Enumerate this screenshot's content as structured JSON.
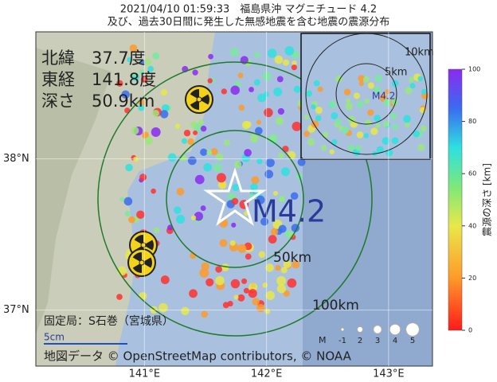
{
  "header": {
    "title": "2021/04/10 01:59:33　福島県沖 マグニチュード 4.2",
    "subtitle": "及び、過去30日間に発生した無感地震を含む地震の震源分布"
  },
  "map": {
    "info": [
      "北緯　37.7度",
      "東経　141.8度",
      "深さ　50.9km"
    ],
    "magnitude_label": "M4.2",
    "ring_labels": [
      "50km",
      "100km"
    ],
    "inset": {
      "ring_labels": [
        "10km",
        "5km"
      ],
      "magnitude_label": "M4.2"
    },
    "xlim": [
      140.11,
      143.36
    ],
    "ylim": [
      36.63,
      38.84
    ],
    "xticks": [
      {
        "value": 141,
        "label": "141°E"
      },
      {
        "value": 142,
        "label": "142°E"
      },
      {
        "value": 143,
        "label": "143°E"
      }
    ],
    "yticks": [
      {
        "value": 38,
        "label": "38°N"
      },
      {
        "value": 37,
        "label": "37°N"
      }
    ],
    "station": "固定局：S石巻（宮城県）",
    "scale": "5cm",
    "attribution": "地図データ © OpenStreetMap contributors, © NOAA",
    "magnitude_legend": {
      "title": "M",
      "labels": [
        "-1",
        "2",
        "3",
        "4",
        "5"
      ]
    }
  },
  "colorbar": {
    "label": "震源の深さ [km]",
    "lim": [
      0,
      100
    ],
    "ticks": [
      0,
      20,
      40,
      60,
      80,
      100
    ]
  }
}
